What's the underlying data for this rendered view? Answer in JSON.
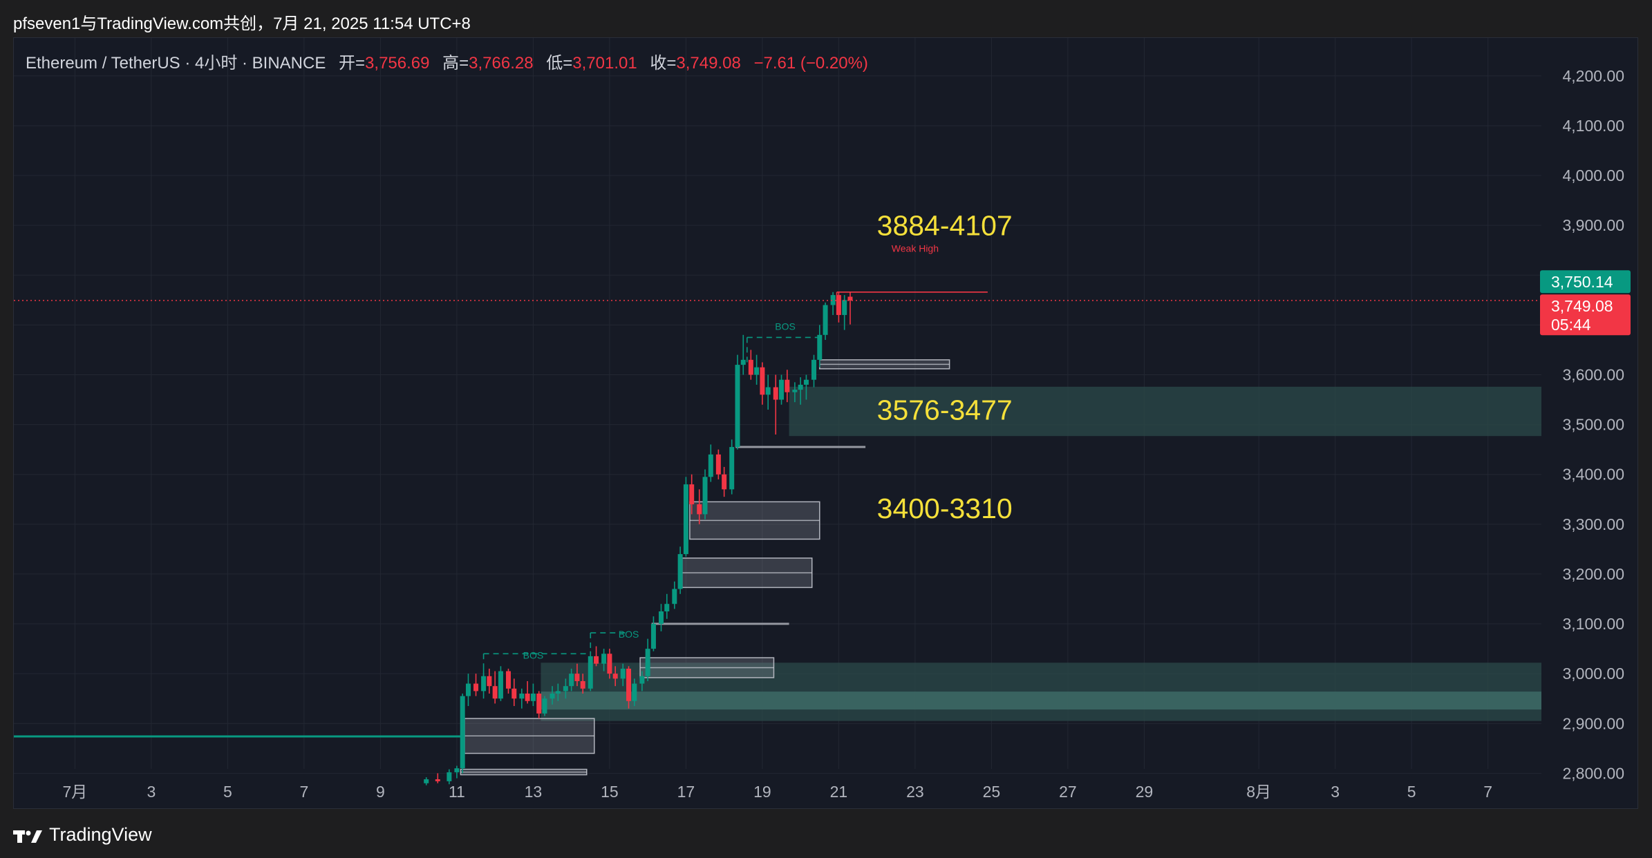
{
  "caption": "pfseven1与TradingView.com共创，7月 21, 2025 11:54 UTC+8",
  "legend": {
    "symbol": "Ethereum / TetherUS · 4小时 · BINANCE",
    "open_label": "开=",
    "open": "3,756.69",
    "high_label": "高=",
    "high": "3,766.28",
    "low_label": "低=",
    "low": "3,701.01",
    "close_label": "收=",
    "close": "3,749.08",
    "change": "−7.61 (−0.20%)"
  },
  "footer": {
    "brand": "TradingView",
    "icon": "tradingview-logo-icon"
  },
  "colors": {
    "up": "#089981",
    "down": "#f23645",
    "zone": "#2b4a4a",
    "annotation": "#f5e03a",
    "grid": "#232733"
  },
  "chart_data": {
    "type": "candlestick",
    "symbol": "ETHUSDT",
    "timeframe": "4h",
    "ylim": [
      2770,
      4240
    ],
    "y_ticks": [
      "4,200.00",
      "4,100.00",
      "4,000.00",
      "3,900.00",
      "3,600.00",
      "3,500.00",
      "3,400.00",
      "3,300.00",
      "3,200.00",
      "3,100.00",
      "3,000.00",
      "2,900.00",
      "2,800.00"
    ],
    "y_tick_values": [
      4200,
      4100,
      4000,
      3900,
      3600,
      3500,
      3400,
      3300,
      3200,
      3100,
      3000,
      2900,
      2800
    ],
    "x_ticks": [
      "7月",
      "3",
      "5",
      "7",
      "9",
      "11",
      "13",
      "15",
      "17",
      "19",
      "21",
      "23",
      "25",
      "27",
      "29",
      "8月",
      "3",
      "5",
      "7"
    ],
    "x_tick_days": [
      1,
      3,
      5,
      7,
      9,
      11,
      13,
      15,
      17,
      19,
      21,
      23,
      25,
      27,
      29,
      32,
      34,
      36,
      38
    ],
    "xlim_days": [
      -0.6,
      39.4
    ],
    "price_labels": [
      {
        "text": "3,750.14",
        "value": 3750.14,
        "color": "#089981"
      },
      {
        "text": "3,749.08",
        "value": 3749.08,
        "color": "#f23645",
        "sub": "05:44"
      }
    ],
    "last_price": 3749.08,
    "annotations": [
      {
        "text": "3884-4107",
        "day": 22.0,
        "price": 3880
      },
      {
        "text": "3576-3477",
        "day": 22.0,
        "price": 3510
      },
      {
        "text": "3400-3310",
        "day": 22.0,
        "price": 3312
      }
    ],
    "labels": [
      {
        "text": "Weak High",
        "day": 23.0,
        "price": 3847,
        "color": "#f23645"
      },
      {
        "text": "BOS",
        "day": 13.0,
        "price": 3030,
        "color": "#089981"
      },
      {
        "text": "BOS",
        "day": 15.5,
        "price": 3072,
        "color": "#089981"
      },
      {
        "text": "BOS",
        "day": 19.6,
        "price": 3690,
        "color": "#089981"
      }
    ],
    "lines": [
      {
        "kind": "weak_high",
        "from_day": 20.95,
        "to_day": 24.9,
        "price": 3766,
        "color": "#f23645",
        "dash": false
      },
      {
        "kind": "bos",
        "from_day": 11.7,
        "to_day": 14.5,
        "price": 3040,
        "color": "#089981",
        "dash": true
      },
      {
        "kind": "bos",
        "from_day": 14.5,
        "to_day": 15.5,
        "price": 3082,
        "color": "#089981",
        "dash": true
      },
      {
        "kind": "bos",
        "from_day": 18.6,
        "to_day": 20.5,
        "price": 3675,
        "color": "#089981",
        "dash": true
      },
      {
        "kind": "level",
        "from_day": 18.3,
        "to_day": 21.7,
        "price": 3455,
        "color": "#9598a1",
        "dash": false
      },
      {
        "kind": "level",
        "from_day": 16.1,
        "to_day": 19.7,
        "price": 3100,
        "color": "#9598a1",
        "dash": false
      },
      {
        "kind": "level",
        "from_day": -0.6,
        "to_day": 11.1,
        "price": 2874,
        "color": "#089981",
        "dash": false
      }
    ],
    "zones": [
      {
        "from_day": 19.7,
        "to_day": 39.4,
        "low": 3477,
        "high": 3576,
        "kind": "demand"
      },
      {
        "from_day": 13.2,
        "to_day": 39.4,
        "low": 2905,
        "high": 3022,
        "kind": "demand"
      },
      {
        "from_day": 13.2,
        "to_day": 39.4,
        "low": 2928,
        "high": 2964,
        "kind": "demand-inner"
      }
    ],
    "boxes": [
      {
        "from_day": 20.5,
        "to_day": 23.9,
        "low": 3612,
        "high": 3630
      },
      {
        "from_day": 17.1,
        "to_day": 20.5,
        "low": 3270,
        "high": 3345
      },
      {
        "from_day": 16.9,
        "to_day": 20.3,
        "low": 3173,
        "high": 3232
      },
      {
        "from_day": 15.8,
        "to_day": 19.3,
        "low": 2992,
        "high": 3032
      },
      {
        "from_day": 11.2,
        "to_day": 14.6,
        "low": 2840,
        "high": 2910
      },
      {
        "from_day": 11.1,
        "to_day": 14.4,
        "low": 2797,
        "high": 2808
      }
    ],
    "candles": [
      [
        10.2,
        2780,
        2792,
        2776,
        2788
      ],
      [
        10.5,
        2788,
        2800,
        2780,
        2784
      ],
      [
        10.8,
        2784,
        2808,
        2778,
        2802
      ],
      [
        11.0,
        2802,
        2815,
        2790,
        2810
      ],
      [
        11.15,
        2810,
        2960,
        2800,
        2955
      ],
      [
        11.3,
        2955,
        3000,
        2935,
        2980
      ],
      [
        11.5,
        2980,
        3000,
        2955,
        2965
      ],
      [
        11.7,
        2965,
        3010,
        2950,
        2995
      ],
      [
        11.85,
        2995,
        3010,
        2960,
        2975
      ],
      [
        12.0,
        2975,
        3005,
        2940,
        2950
      ],
      [
        12.15,
        2950,
        3015,
        2945,
        3005
      ],
      [
        12.35,
        3005,
        3010,
        2960,
        2970
      ],
      [
        12.5,
        2970,
        2990,
        2935,
        2950
      ],
      [
        12.7,
        2950,
        2970,
        2930,
        2960
      ],
      [
        12.85,
        2960,
        2985,
        2940,
        2945
      ],
      [
        13.0,
        2945,
        2980,
        2935,
        2960
      ],
      [
        13.15,
        2960,
        2965,
        2910,
        2920
      ],
      [
        13.3,
        2920,
        2955,
        2915,
        2950
      ],
      [
        13.5,
        2950,
        2975,
        2938,
        2960
      ],
      [
        13.65,
        2960,
        2980,
        2945,
        2965
      ],
      [
        13.85,
        2965,
        2990,
        2950,
        2975
      ],
      [
        14.0,
        2975,
        3010,
        2965,
        3000
      ],
      [
        14.15,
        3000,
        3020,
        2975,
        2985
      ],
      [
        14.3,
        2985,
        3000,
        2960,
        2970
      ],
      [
        14.5,
        2970,
        3045,
        2965,
        3035
      ],
      [
        14.65,
        3035,
        3055,
        3015,
        3020
      ],
      [
        14.85,
        3020,
        3050,
        3005,
        3040
      ],
      [
        15.0,
        3040,
        3050,
        2990,
        3000
      ],
      [
        15.15,
        3000,
        3015,
        2975,
        2990
      ],
      [
        15.35,
        2990,
        3020,
        2975,
        3010
      ],
      [
        15.5,
        3010,
        3015,
        2930,
        2945
      ],
      [
        15.65,
        2945,
        2990,
        2935,
        2980
      ],
      [
        15.85,
        2980,
        3005,
        2965,
        2995
      ],
      [
        16.0,
        2995,
        3070,
        2985,
        3050
      ],
      [
        16.15,
        3050,
        3115,
        3045,
        3100
      ],
      [
        16.35,
        3100,
        3140,
        3085,
        3125
      ],
      [
        16.5,
        3125,
        3160,
        3110,
        3140
      ],
      [
        16.7,
        3140,
        3185,
        3130,
        3170
      ],
      [
        16.85,
        3170,
        3255,
        3160,
        3240
      ],
      [
        17.0,
        3240,
        3395,
        3235,
        3380
      ],
      [
        17.15,
        3380,
        3400,
        3320,
        3340
      ],
      [
        17.35,
        3340,
        3370,
        3300,
        3320
      ],
      [
        17.5,
        3320,
        3410,
        3310,
        3395
      ],
      [
        17.65,
        3395,
        3460,
        3385,
        3440
      ],
      [
        17.85,
        3440,
        3450,
        3390,
        3400
      ],
      [
        18.0,
        3400,
        3415,
        3355,
        3370
      ],
      [
        18.2,
        3370,
        3470,
        3360,
        3455
      ],
      [
        18.35,
        3455,
        3640,
        3450,
        3620
      ],
      [
        18.5,
        3620,
        3680,
        3600,
        3630
      ],
      [
        18.7,
        3630,
        3650,
        3590,
        3600
      ],
      [
        18.85,
        3600,
        3640,
        3580,
        3615
      ],
      [
        19.0,
        3615,
        3625,
        3540,
        3560
      ],
      [
        19.15,
        3560,
        3600,
        3530,
        3575
      ],
      [
        19.35,
        3575,
        3600,
        3480,
        3550
      ],
      [
        19.5,
        3550,
        3600,
        3540,
        3590
      ],
      [
        19.65,
        3590,
        3610,
        3545,
        3565
      ],
      [
        19.85,
        3565,
        3585,
        3545,
        3570
      ],
      [
        20.0,
        3570,
        3595,
        3540,
        3580
      ],
      [
        20.15,
        3580,
        3600,
        3550,
        3590
      ],
      [
        20.35,
        3590,
        3640,
        3575,
        3630
      ],
      [
        20.5,
        3630,
        3700,
        3615,
        3680
      ],
      [
        20.65,
        3680,
        3745,
        3670,
        3740
      ],
      [
        20.85,
        3740,
        3766,
        3720,
        3760
      ],
      [
        21.0,
        3760,
        3766,
        3705,
        3720
      ],
      [
        21.15,
        3720,
        3760,
        3690,
        3750
      ],
      [
        21.3,
        3756.69,
        3766.28,
        3701.01,
        3749.08
      ]
    ]
  }
}
